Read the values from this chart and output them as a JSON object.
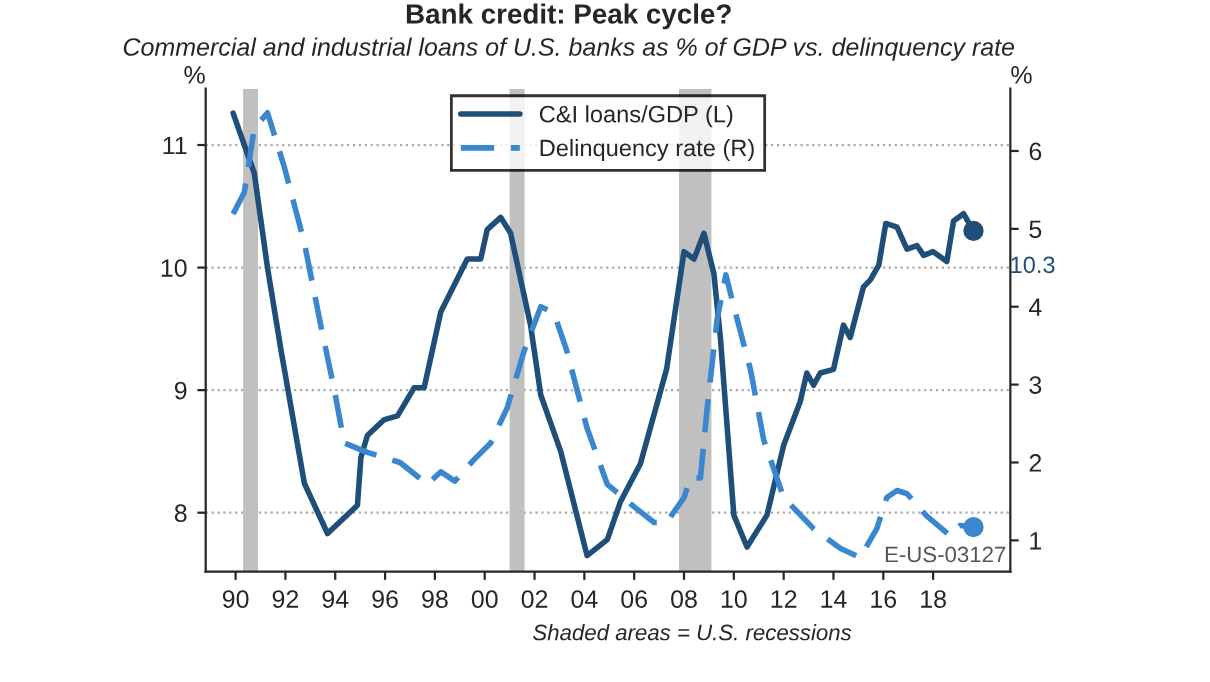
{
  "chart_data": {
    "type": "line",
    "title": "Bank credit: Peak cycle?",
    "subtitle": "Commercial and industrial loans of U.S. banks as % of GDP vs. delinquency rate",
    "ylabel": "%",
    "y2label": "%",
    "series": [
      {
        "name": "C&I loans/GDP (L)",
        "color": "#1f4e79",
        "line_style": "solid",
        "axis": "y",
        "x": [
          1989.9,
          1990.75,
          1991.28,
          1991.82,
          1992.76,
          1993.69,
          1994.89,
          1995.03,
          1995.29,
          1995.97,
          1996.5,
          1997.17,
          1997.57,
          1998.24,
          1999.3,
          1999.84,
          2000.1,
          2000.64,
          2001.04,
          2001.84,
          2002.25,
          2003.05,
          2004.11,
          2004.92,
          2005.45,
          2006.25,
          2007.3,
          2008.0,
          2008.4,
          2008.8,
          2009.2,
          2009.46,
          2010.0,
          2010.53,
          2011.33,
          2012.0,
          2012.67,
          2012.93,
          2013.2,
          2013.47,
          2014.0,
          2014.4,
          2014.67,
          2015.2,
          2015.48,
          2015.82,
          2016.1,
          2016.55,
          2016.95,
          2017.35,
          2017.62,
          2018.0,
          2018.55,
          2018.82,
          2019.22,
          2019.62
        ],
        "values": [
          11.26,
          10.77,
          10.0,
          9.33,
          8.24,
          7.83,
          8.06,
          8.45,
          8.63,
          8.76,
          8.79,
          9.02,
          9.02,
          9.64,
          10.07,
          10.07,
          10.31,
          10.41,
          10.28,
          9.53,
          8.96,
          8.5,
          7.65,
          7.78,
          8.09,
          8.4,
          9.17,
          10.13,
          10.07,
          10.28,
          9.95,
          9.43,
          7.98,
          7.72,
          7.98,
          8.55,
          8.91,
          9.14,
          9.04,
          9.14,
          9.17,
          9.53,
          9.43,
          9.84,
          9.9,
          10.02,
          10.36,
          10.33,
          10.15,
          10.18,
          10.1,
          10.13,
          10.05,
          10.38,
          10.44,
          10.3
        ]
      },
      {
        "name": "Delinquency rate (R)",
        "color": "#3a87d0",
        "line_style": "dashed",
        "axis": "y2",
        "x": [
          1989.9,
          1990.35,
          1990.75,
          1991.28,
          1991.95,
          1992.76,
          1993.42,
          1993.96,
          1994.36,
          1995.29,
          1996.6,
          1997.7,
          1998.24,
          1998.8,
          1999.58,
          2000.24,
          2000.9,
          2001.58,
          2002.25,
          2002.78,
          2003.3,
          2004.1,
          2004.92,
          2006.0,
          2006.8,
          2007.3,
          2008.0,
          2008.26,
          2008.66,
          2008.93,
          2009.33,
          2009.68,
          2010.0,
          2010.67,
          2011.2,
          2012.0,
          2013.2,
          2014.27,
          2015.07,
          2015.74,
          2016.14,
          2016.55,
          2016.95,
          2017.75,
          2018.68,
          2019.08,
          2019.62
        ],
        "values": [
          5.19,
          5.47,
          6.29,
          6.49,
          5.8,
          4.82,
          3.76,
          2.94,
          2.25,
          2.13,
          2.0,
          1.72,
          1.88,
          1.76,
          2.04,
          2.25,
          2.7,
          3.43,
          4.0,
          3.92,
          3.43,
          2.45,
          1.72,
          1.43,
          1.23,
          1.23,
          1.55,
          1.8,
          1.8,
          2.7,
          3.84,
          4.41,
          4.0,
          3.19,
          2.29,
          1.55,
          1.15,
          0.9,
          0.78,
          1.15,
          1.55,
          1.64,
          1.6,
          1.31,
          1.06,
          1.19,
          1.17
        ]
      },
      {
        "type": "scatter",
        "color": "#1f4e79",
        "marker": "circle",
        "axis": "y",
        "x": [
          2019.62
        ],
        "values": [
          10.3
        ]
      },
      {
        "type": "scatter",
        "color": "#3a87d0",
        "marker": "circle",
        "axis": "y2",
        "x": [
          2019.62
        ],
        "values": [
          1.17
        ]
      }
    ],
    "xlim": [
      1988.8,
      2021.1
    ],
    "xticks": [
      {
        "value": 1990,
        "label": "90"
      },
      {
        "value": 1992,
        "label": "92"
      },
      {
        "value": 1994,
        "label": "94"
      },
      {
        "value": 1996,
        "label": "96"
      },
      {
        "value": 1998,
        "label": "98"
      },
      {
        "value": 2000,
        "label": "00"
      },
      {
        "value": 2002,
        "label": "02"
      },
      {
        "value": 2004,
        "label": "04"
      },
      {
        "value": 2006,
        "label": "06"
      },
      {
        "value": 2008,
        "label": "08"
      },
      {
        "value": 2010,
        "label": "10"
      },
      {
        "value": 2012,
        "label": "12"
      },
      {
        "value": 2014,
        "label": "14"
      },
      {
        "value": 2016,
        "label": "16"
      },
      {
        "value": 2018,
        "label": "18"
      }
    ],
    "ylim": [
      7.52,
      11.46
    ],
    "yticks": [
      8,
      9,
      10,
      11
    ],
    "y2lim": [
      0.6,
      6.8
    ],
    "y2ticks": [
      1,
      2,
      3,
      4,
      5,
      6
    ],
    "bands": [
      {
        "axis": "x",
        "from": 1990.3,
        "to": 1990.9,
        "color": "#c0c0c0"
      },
      {
        "axis": "x",
        "from": 2001.0,
        "to": 2001.6,
        "color": "#c0c0c0"
      },
      {
        "axis": "x",
        "from": 2007.8,
        "to": 2009.1,
        "color": "#c0c0c0"
      }
    ],
    "annotations": [
      {
        "text": "10.3",
        "x": 2019.62,
        "y": 10.3
      },
      "E-US-03127",
      "Shaded areas = U.S. recessions"
    ],
    "grid": "y",
    "legend": "top"
  }
}
